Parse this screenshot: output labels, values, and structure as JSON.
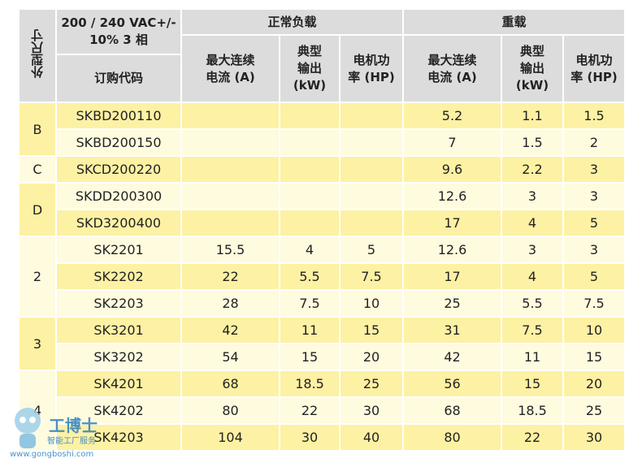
{
  "header": {
    "frame": "外型尺寸",
    "voltage": "200 / 240 VAC+/-\n10% 3 相",
    "order_code": "订购代码",
    "groups": [
      "正常负载",
      "重载"
    ],
    "columns": [
      "最大连续\n电流 (A)",
      "典型\n输出\n(kW)",
      "电机功\n率 (HP)",
      "最大连续\n电流 (A)",
      "典型\n输出\n(kW)",
      "电机功\n率 (HP)"
    ]
  },
  "groups": [
    {
      "frame": "B",
      "rows": [
        [
          "SKBD200110",
          null,
          null,
          null,
          5.2,
          1.1,
          1.5
        ],
        [
          "SKBD200150",
          null,
          null,
          null,
          7,
          1.5,
          2
        ]
      ]
    },
    {
      "frame": "C",
      "rows": [
        [
          "SKCD200220",
          null,
          null,
          null,
          9.6,
          2.2,
          3
        ]
      ]
    },
    {
      "frame": "D",
      "rows": [
        [
          "SKDD200300",
          null,
          null,
          null,
          12.6,
          3,
          3
        ],
        [
          "SKD3200400",
          null,
          null,
          null,
          17,
          4,
          5
        ]
      ]
    },
    {
      "frame": "2",
      "rows": [
        [
          "SK2201",
          15.5,
          4,
          5,
          12.6,
          3,
          3
        ],
        [
          "SK2202",
          22,
          5.5,
          7.5,
          17,
          4,
          5
        ],
        [
          "SK2203",
          28,
          7.5,
          10,
          25,
          5.5,
          7.5
        ]
      ]
    },
    {
      "frame": "3",
      "rows": [
        [
          "SK3201",
          42,
          11,
          15,
          31,
          7.5,
          10
        ],
        [
          "SK3202",
          54,
          15,
          20,
          42,
          11,
          15
        ]
      ]
    },
    {
      "frame": "4",
      "rows": [
        [
          "SK4201",
          68,
          18.5,
          25,
          56,
          15,
          20
        ],
        [
          "SK4202",
          80,
          22,
          30,
          68,
          18.5,
          25
        ],
        [
          "SK4203",
          104,
          30,
          40,
          80,
          22,
          30
        ]
      ]
    }
  ],
  "watermark": {
    "brand": "工博士",
    "slogan": "智能工厂服务",
    "url": "www.gongboshi.com"
  }
}
